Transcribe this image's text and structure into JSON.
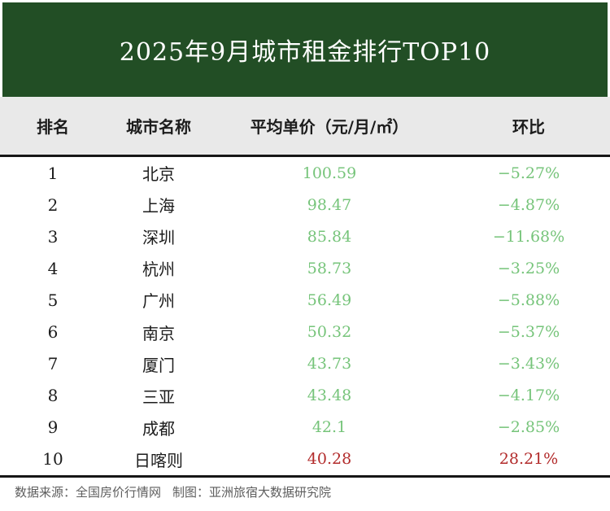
{
  "header": {
    "title": "2025年9月城市租金排行TOP10"
  },
  "table": {
    "columns": [
      "排名",
      "城市名称",
      "平均单价（元/月/㎡）",
      "环比"
    ],
    "rows": [
      {
        "rank": "1",
        "city": "北京",
        "price": "100.59",
        "mom": "−5.27%",
        "highlight": false
      },
      {
        "rank": "2",
        "city": "上海",
        "price": "98.47",
        "mom": "−4.87%",
        "highlight": false
      },
      {
        "rank": "3",
        "city": "深圳",
        "price": "85.84",
        "mom": "−11.68%",
        "highlight": false
      },
      {
        "rank": "4",
        "city": "杭州",
        "price": "58.73",
        "mom": "−3.25%",
        "highlight": false
      },
      {
        "rank": "5",
        "city": "广州",
        "price": "56.49",
        "mom": "−5.88%",
        "highlight": false
      },
      {
        "rank": "6",
        "city": "南京",
        "price": "50.32",
        "mom": "−5.37%",
        "highlight": false
      },
      {
        "rank": "7",
        "city": "厦门",
        "price": "43.73",
        "mom": "−3.43%",
        "highlight": false
      },
      {
        "rank": "8",
        "city": "三亚",
        "price": "43.48",
        "mom": "−4.17%",
        "highlight": false
      },
      {
        "rank": "9",
        "city": "成都",
        "price": "42.1",
        "mom": "−2.85%",
        "highlight": false
      },
      {
        "rank": "10",
        "city": "日喀则",
        "price": "40.28",
        "mom": "28.21%",
        "highlight": true
      }
    ]
  },
  "footer": {
    "source": "数据来源：全国房价行情网",
    "credit": "制图：亚洲旅宿大数据研究院"
  },
  "colors": {
    "banner_green": "#224e25",
    "header_band_gray": "#e9e9e9",
    "value_green": "#76c47a",
    "value_red": "#b22b2b",
    "rule_black": "#161616",
    "footer_gray": "#5e5e5e"
  },
  "chart_data": {
    "type": "table",
    "title": "2025年9月城市租金排行TOP10",
    "columns": [
      "排名",
      "城市名称",
      "平均单价（元/月/㎡）",
      "环比"
    ],
    "rows": [
      {
        "rank": 1,
        "city": "北京",
        "price": 100.59,
        "mom_pct": -5.27
      },
      {
        "rank": 2,
        "city": "上海",
        "price": 98.47,
        "mom_pct": -4.87
      },
      {
        "rank": 3,
        "city": "深圳",
        "price": 85.84,
        "mom_pct": -11.68
      },
      {
        "rank": 4,
        "city": "杭州",
        "price": 58.73,
        "mom_pct": -3.25
      },
      {
        "rank": 5,
        "city": "广州",
        "price": 56.49,
        "mom_pct": -5.88
      },
      {
        "rank": 6,
        "city": "南京",
        "price": 50.32,
        "mom_pct": -5.37
      },
      {
        "rank": 7,
        "city": "厦门",
        "price": 43.73,
        "mom_pct": -3.43
      },
      {
        "rank": 8,
        "city": "三亚",
        "price": 43.48,
        "mom_pct": -4.17
      },
      {
        "rank": 9,
        "city": "成都",
        "price": 42.1,
        "mom_pct": -2.85
      },
      {
        "rank": 10,
        "city": "日喀则",
        "price": 40.28,
        "mom_pct": 28.21
      }
    ],
    "notes": "数据来源：全国房价行情网 制图：亚洲旅宿大数据研究院",
    "value_color_rule": "rows 1-9 values green (rent falling), row 10 values red (rent rising)"
  }
}
